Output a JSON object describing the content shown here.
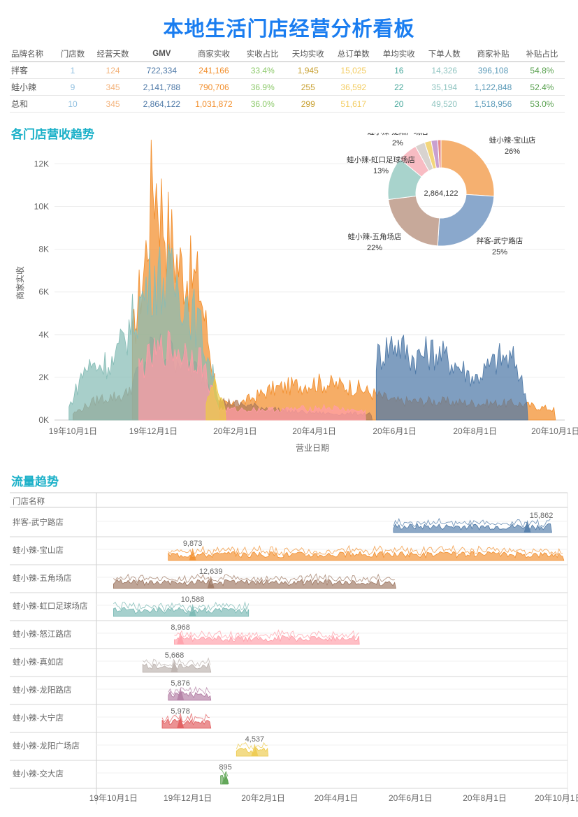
{
  "title": "本地生活门店经营分析看板",
  "kpi": {
    "headers": [
      "品牌名称",
      "门店数",
      "经营天数",
      "GMV",
      "商家实收",
      "实收占比",
      "天均实收",
      "总订单数",
      "单均实收",
      "下单人数",
      "商家补贴",
      "补贴占比"
    ],
    "col_colors": [
      "#555555",
      "#8fbfe0",
      "#f3b27a",
      "#4e79a7",
      "#f28e2b",
      "#8cc96a",
      "#c8a030",
      "#f3cc60",
      "#48a89c",
      "#8fc4c0",
      "#5a9ab8",
      "#59a14f"
    ],
    "rows": [
      [
        "拌客",
        "1",
        "124",
        "722,334",
        "241,166",
        "33.4%",
        "1,945",
        "15,025",
        "16",
        "14,326",
        "396,108",
        "54.8%"
      ],
      [
        "蛙小辣",
        "9",
        "345",
        "2,141,788",
        "790,706",
        "36.9%",
        "255",
        "36,592",
        "22",
        "35,194",
        "1,122,848",
        "52.4%"
      ],
      [
        "总和",
        "10",
        "345",
        "2,864,122",
        "1,031,872",
        "36.0%",
        "299",
        "51,617",
        "20",
        "49,520",
        "1,518,956",
        "53.0%"
      ]
    ]
  },
  "section1": "各门店营收趋势",
  "section2": "流量趋势",
  "chart_data": [
    {
      "type": "area",
      "ylabel": "商家实收",
      "xlabel": "营业日期",
      "ylim": [
        0,
        12800
      ],
      "yticks": [
        "0K",
        "2K",
        "4K",
        "6K",
        "8K",
        "10K",
        "12K"
      ],
      "ytick_values": [
        0,
        2000,
        4000,
        6000,
        8000,
        10000,
        12000
      ],
      "xticks": [
        "19年10月1日",
        "19年12月1日",
        "20年2月1日",
        "20年4月1日",
        "20年6月1日",
        "20年8月1日",
        "20年10月1日"
      ],
      "x_range": [
        "2019-09-17",
        "2020-10-08"
      ],
      "series": [
        {
          "name": "蛙小辣-宝山店",
          "color": "#f28e2b",
          "points": [
            [
              "2019-11-15",
              3800
            ],
            [
              "2019-11-25",
              7800
            ],
            [
              "2019-12-01",
              12000
            ],
            [
              "2019-12-10",
              9500
            ],
            [
              "2019-12-20",
              7500
            ],
            [
              "2020-01-05",
              6500
            ],
            [
              "2020-01-15",
              2500
            ],
            [
              "2020-01-20",
              800
            ],
            [
              "2020-02-01",
              700
            ],
            [
              "2020-03-01",
              1500
            ],
            [
              "2020-04-01",
              1800
            ],
            [
              "2020-05-01",
              1600
            ],
            [
              "2020-06-01",
              900
            ],
            [
              "2020-07-01",
              900
            ],
            [
              "2020-08-01",
              800
            ],
            [
              "2020-09-01",
              800
            ],
            [
              "2020-10-01",
              500
            ]
          ]
        },
        {
          "name": "拌客-武宁路店",
          "color": "#4e79a7",
          "points": [
            [
              "2020-05-18",
              3000
            ],
            [
              "2020-06-01",
              3800
            ],
            [
              "2020-06-15",
              3000
            ],
            [
              "2020-07-01",
              3300
            ],
            [
              "2020-07-15",
              2800
            ],
            [
              "2020-08-01",
              2000
            ],
            [
              "2020-08-20",
              3000
            ],
            [
              "2020-09-01",
              2800
            ],
            [
              "2020-09-10",
              800
            ]
          ]
        },
        {
          "name": "蛙小辣-五角场店",
          "color": "#b07b5a",
          "points": [
            [
              "2019-10-01",
              300
            ],
            [
              "2019-10-20",
              1000
            ],
            [
              "2019-11-10",
              1200
            ],
            [
              "2019-12-01",
              3500
            ],
            [
              "2019-12-20",
              3000
            ],
            [
              "2020-01-10",
              2000
            ],
            [
              "2020-01-20",
              900
            ],
            [
              "2020-03-15",
              400
            ],
            [
              "2020-04-15",
              300
            ],
            [
              "2020-05-15",
              300
            ]
          ]
        },
        {
          "name": "蛙小辣-虹口足球场店",
          "color": "#86bcb6",
          "points": [
            [
              "2019-09-28",
              600
            ],
            [
              "2019-10-10",
              2500
            ],
            [
              "2019-11-01",
              2800
            ],
            [
              "2019-12-01",
              7000
            ],
            [
              "2019-12-20",
              6500
            ],
            [
              "2020-01-05",
              4500
            ],
            [
              "2020-01-20",
              1000
            ]
          ]
        },
        {
          "name": "蛙小辣-怒江路店",
          "color": "#ff9da7",
          "points": [
            [
              "2019-11-20",
              2500
            ],
            [
              "2019-12-10",
              3500
            ],
            [
              "2020-01-05",
              3000
            ],
            [
              "2020-01-20",
              500
            ],
            [
              "2020-03-10",
              500
            ],
            [
              "2020-04-10",
              600
            ],
            [
              "2020-05-10",
              400
            ]
          ]
        },
        {
          "name": "蛙小辣-龙阳广场店",
          "color": "#edc948",
          "points": [
            [
              "2020-01-10",
              1000
            ],
            [
              "2020-01-18",
              1800
            ],
            [
              "2020-01-25",
              500
            ]
          ]
        }
      ],
      "pie": {
        "center_label": "2,864,122",
        "slices": [
          {
            "name": "蛙小辣-宝山店",
            "pct": 26,
            "label": "26%",
            "color": "#f5b070"
          },
          {
            "name": "拌客-武宁路店",
            "pct": 25,
            "label": "25%",
            "color": "#8aa8cc"
          },
          {
            "name": "蛙小辣-五角场店",
            "pct": 22,
            "label": "22%",
            "color": "#c7a99a"
          },
          {
            "name": "蛙小辣-虹口足球场店",
            "pct": 13,
            "label": "13%",
            "color": "#a8d3cc"
          },
          {
            "name": "蛙小辣-怒江路店",
            "pct": 6,
            "label": "",
            "color": "#f8bcc3"
          },
          {
            "name": "蛙小辣-真如店",
            "pct": 3,
            "label": "",
            "color": "#d8d3cf"
          },
          {
            "name": "蛙小辣-大宁店",
            "pct": 2,
            "label": "",
            "color": "#f3d67c"
          },
          {
            "name": "蛙小辣-龙阳广场店",
            "pct": 2,
            "label": "2%",
            "color": "#c9a0d0"
          },
          {
            "name": "蛙小辣-交大店",
            "pct": 1,
            "label": "",
            "color": "#e58a8a"
          }
        ]
      }
    },
    {
      "type": "area",
      "row_header": "门店名称",
      "xticks": [
        "19年10月1日",
        "19年12月1日",
        "20年2月1日",
        "20年4月1日",
        "20年6月1日",
        "20年8月1日",
        "20年10月1日"
      ],
      "x_range": [
        "2019-09-17",
        "2020-10-08"
      ],
      "rows": [
        {
          "name": "拌客-武宁路店",
          "color": "#4e79a7",
          "peak": "15,862",
          "peak_date": "2020-09-05",
          "start": "2020-05-18",
          "end": "2020-09-25"
        },
        {
          "name": "蛙小辣-宝山店",
          "color": "#f28e2b",
          "peak": "9,873",
          "peak_date": "2019-12-05",
          "start": "2019-11-15",
          "end": "2020-10-05"
        },
        {
          "name": "蛙小辣-五角场店",
          "color": "#9c755f",
          "peak": "12,639",
          "peak_date": "2019-12-20",
          "start": "2019-10-01",
          "end": "2020-05-20"
        },
        {
          "name": "蛙小辣-虹口足球场店",
          "color": "#76b7b2",
          "peak": "10,588",
          "peak_date": "2019-12-05",
          "start": "2019-10-01",
          "end": "2020-01-20"
        },
        {
          "name": "蛙小辣-怒江路店",
          "color": "#ff9da7",
          "peak": "8,968",
          "peak_date": "2019-11-25",
          "start": "2019-11-20",
          "end": "2020-04-20"
        },
        {
          "name": "蛙小辣-真如店",
          "color": "#bab0ac",
          "peak": "5,668",
          "peak_date": "2019-11-20",
          "start": "2019-10-25",
          "end": "2019-12-20"
        },
        {
          "name": "蛙小辣-龙阳路店",
          "color": "#b07aa1",
          "peak": "5,876",
          "peak_date": "2019-11-25",
          "start": "2019-11-15",
          "end": "2019-12-20"
        },
        {
          "name": "蛙小辣-大宁店",
          "color": "#e15759",
          "peak": "5,978",
          "peak_date": "2019-11-25",
          "start": "2019-11-10",
          "end": "2019-12-20"
        },
        {
          "name": "蛙小辣-龙阳广场店",
          "color": "#edc948",
          "peak": "4,537",
          "peak_date": "2020-01-25",
          "start": "2020-01-10",
          "end": "2020-02-05"
        },
        {
          "name": "蛙小辣-交大店",
          "color": "#59a14f",
          "peak": "895",
          "peak_date": "2020-01-01",
          "start": "2019-12-28",
          "end": "2020-01-03"
        }
      ]
    }
  ]
}
